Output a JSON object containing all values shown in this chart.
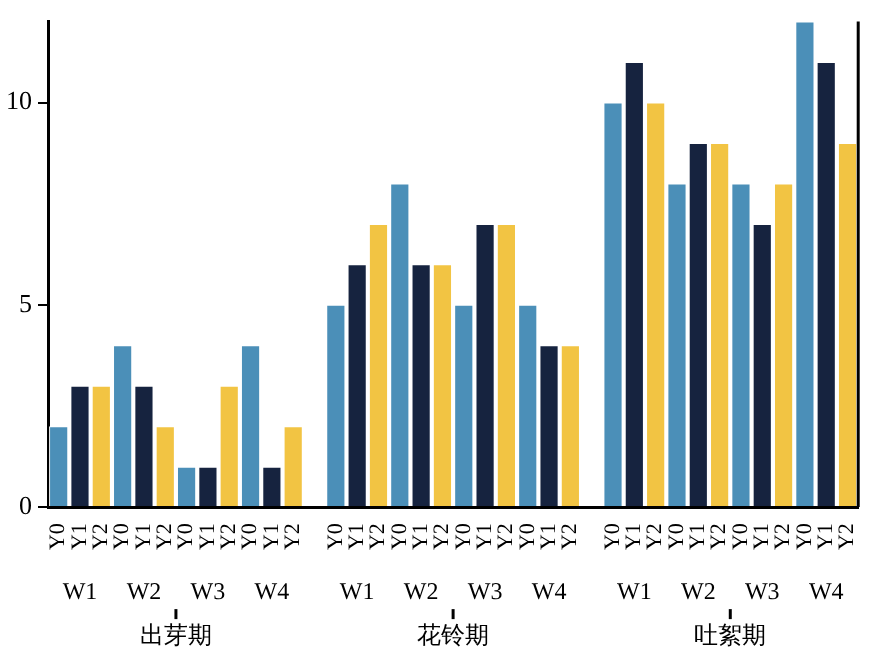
{
  "chart_data": {
    "type": "bar",
    "categories": [
      "Y0",
      "Y1",
      "Y2",
      "Y0",
      "Y1",
      "Y2",
      "Y0",
      "Y1",
      "Y2",
      "Y0",
      "Y1",
      "Y2",
      null,
      "Y0",
      "Y1",
      "Y2",
      "Y0",
      "Y1",
      "Y2",
      "Y0",
      "Y1",
      "Y2",
      "Y0",
      "Y1",
      "Y2",
      null,
      "Y0",
      "Y1",
      "Y2",
      "Y0",
      "Y1",
      "Y2",
      "Y0",
      "Y1",
      "Y2",
      "Y0",
      "Y1",
      "Y2"
    ],
    "values": [
      2,
      3,
      3,
      4,
      3,
      2,
      1,
      1,
      3,
      4,
      1,
      2,
      null,
      5,
      6,
      7,
      8,
      6,
      6,
      5,
      7,
      7,
      5,
      4,
      4,
      null,
      10,
      11,
      10,
      8,
      9,
      9,
      8,
      7,
      8,
      12,
      11,
      9
    ],
    "colors": [
      "#4b8fb8",
      "#16233f",
      "#f2c443",
      "#4b8fb8",
      "#16233f",
      "#f2c443",
      "#4b8fb8",
      "#16233f",
      "#f2c443",
      "#4b8fb8",
      "#16233f",
      "#f2c443",
      "#ffffff",
      "#4b8fb8",
      "#16233f",
      "#f2c443",
      "#4b8fb8",
      "#16233f",
      "#f2c443",
      "#4b8fb8",
      "#16233f",
      "#f2c443",
      "#4b8fb8",
      "#16233f",
      "#f2c443",
      "#ffffff",
      "#4b8fb8",
      "#16233f",
      "#f2c443",
      "#4b8fb8",
      "#16233f",
      "#f2c443",
      "#4b8fb8",
      "#16233f",
      "#f2c443",
      "#4b8fb8",
      "#16233f",
      "#f2c443"
    ],
    "ylim": [
      0,
      12
    ],
    "yticks": [
      0,
      5,
      10
    ],
    "grid": false,
    "legend": false,
    "annotations": [
      "W1",
      "W2",
      "W3",
      "W4",
      "W1",
      "W2",
      "W3",
      "W4",
      "W1",
      "W2",
      "W3",
      "W4",
      "出芽期",
      "花铃期",
      "吐絮期"
    ]
  }
}
